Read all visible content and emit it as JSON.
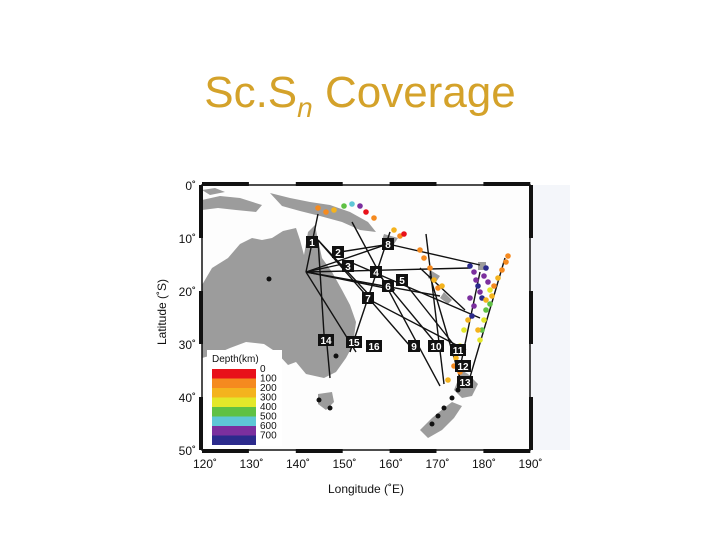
{
  "title": {
    "prefix": "Sc.S",
    "subscript": "n",
    "suffix": " Coverage"
  },
  "map": {
    "x_axis": {
      "label": "Longitude (˚E)",
      "ticks": [
        "120˚",
        "130˚",
        "140˚",
        "150˚",
        "160˚",
        "170˚",
        "180˚",
        "190˚"
      ]
    },
    "y_axis": {
      "label": "Latitude (˚S)",
      "ticks": [
        "0˚",
        "10˚",
        "20˚",
        "30˚",
        "40˚",
        "50˚"
      ]
    },
    "legend": {
      "title": "Depth(km)",
      "labels": [
        "0",
        "100",
        "200",
        "300",
        "400",
        "500",
        "600",
        "700"
      ],
      "colors": [
        "#e8111a",
        "#f58a1f",
        "#f4b31e",
        "#e3e82a",
        "#5fc144",
        "#5ec7d6",
        "#7b2f9e",
        "#2b2a8c"
      ]
    },
    "stations": [
      {
        "id": "1"
      },
      {
        "id": "2"
      },
      {
        "id": "3"
      },
      {
        "id": "4"
      },
      {
        "id": "5"
      },
      {
        "id": "6"
      },
      {
        "id": "7"
      },
      {
        "id": "8"
      },
      {
        "id": "9"
      },
      {
        "id": "10"
      },
      {
        "id": "11"
      },
      {
        "id": "12"
      },
      {
        "id": "13"
      },
      {
        "id": "14"
      },
      {
        "id": "15"
      },
      {
        "id": "16"
      }
    ]
  }
}
